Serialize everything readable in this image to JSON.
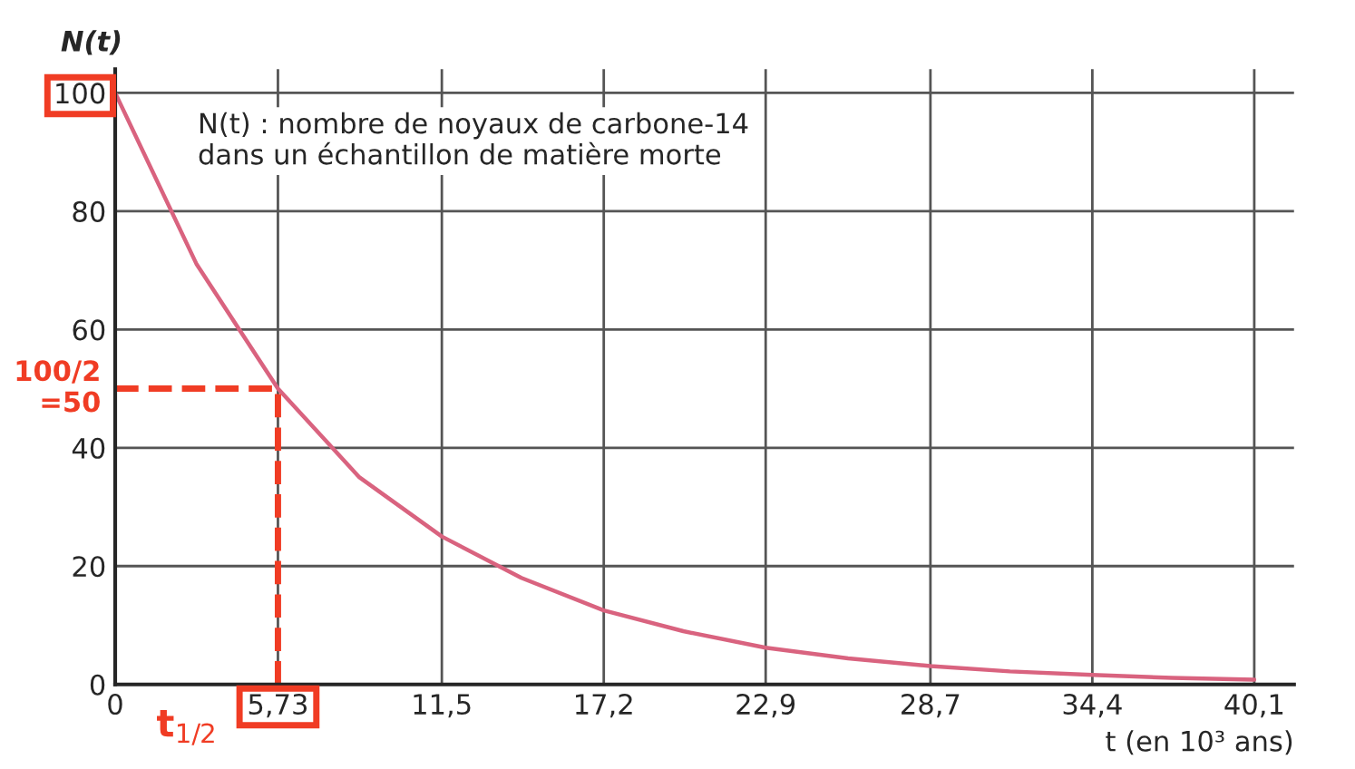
{
  "chart_data": {
    "type": "line",
    "xlabel": "t (en 10³ ans)",
    "ylabel": "N(t)",
    "annotations": [
      "N(t) : nombre de noyaux de carbone-14\ndans un échantillon de matière morte"
    ],
    "x": [
      0,
      2.87,
      5.73,
      8.6,
      11.5,
      14.3,
      17.2,
      20,
      22.9,
      25.8,
      28.7,
      31.5,
      34.4,
      37.2,
      40.1
    ],
    "series": [
      {
        "color": "#d9637f",
        "values": [
          100,
          71,
          50,
          35,
          25,
          18,
          12.5,
          9,
          6.2,
          4.4,
          3.1,
          2.2,
          1.6,
          1.1,
          0.8
        ]
      }
    ],
    "xlim": [
      0,
      41.5
    ],
    "ylim": [
      0,
      104
    ],
    "xticks": [
      0,
      {
        "value": 5.73,
        "label": "5,73"
      },
      {
        "value": 11.5,
        "label": "11,5"
      },
      {
        "value": 17.2,
        "label": "17,2"
      },
      {
        "value": 22.9,
        "label": "22,9"
      },
      {
        "value": 28.7,
        "label": "28,7"
      },
      {
        "value": 34.4,
        "label": "34,4"
      },
      {
        "value": 40.1,
        "label": "40,1"
      }
    ],
    "yticks": [
      0,
      20,
      40,
      60,
      80,
      100
    ],
    "ref_lines": [
      {
        "axis": "y",
        "value": 50,
        "label": "100/2\n=50",
        "color": "#f03c24",
        "line_style": "dashed"
      },
      {
        "axis": "x",
        "value": 5.73,
        "label": "t$_{1/2}$",
        "color": "#f03c24",
        "line_style": "dashed"
      }
    ],
    "grid": true,
    "marker": "none",
    "line_style": "solid"
  }
}
